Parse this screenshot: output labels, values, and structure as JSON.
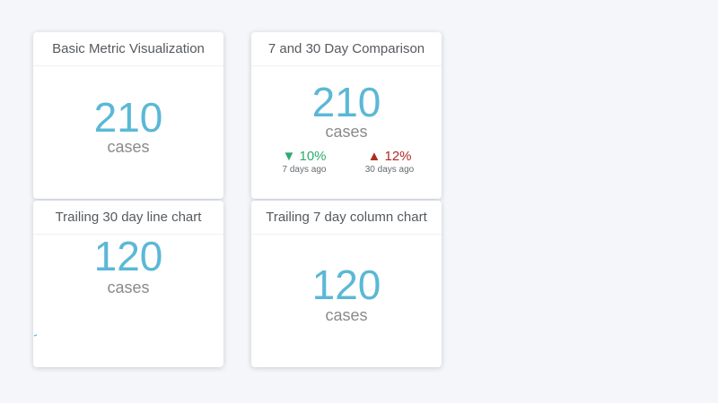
{
  "colors": {
    "background": "#f4f6f9",
    "card": "#ffffff",
    "metric": "#5bb8d6",
    "unit": "#8a8a8a",
    "positive_change": "#2eaa6e",
    "negative_change": "#b02a25"
  },
  "cards": [
    {
      "title": "Basic Metric Visualization",
      "value": "210",
      "unit": "cases"
    },
    {
      "title": "7 and 30 Day Comparison",
      "value": "210",
      "unit": "cases",
      "comparisons": [
        {
          "arrow": "▼",
          "change": "10%",
          "direction": "down",
          "label": "7 days ago"
        },
        {
          "arrow": "▲",
          "change": "12%",
          "direction": "up",
          "label": "30 days ago"
        }
      ]
    },
    {
      "title": "Trailing 30 day line chart",
      "value": "120",
      "unit": "cases"
    },
    {
      "title": "Trailing 7 day column chart",
      "value": "120",
      "unit": "cases"
    }
  ]
}
